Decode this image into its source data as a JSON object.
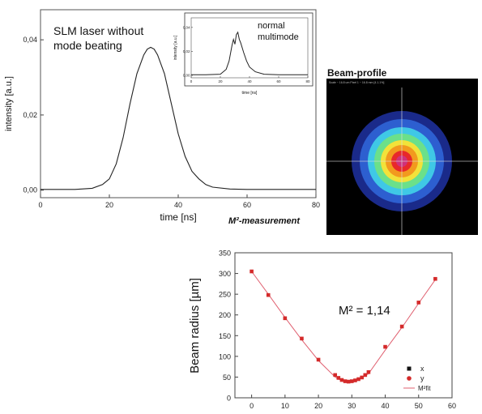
{
  "chart_data": [
    {
      "type": "line",
      "annotation": "SLM laser without mode beating",
      "xlabel": "time [ns]",
      "ylabel": "intensity [a.u.]",
      "xlim": [
        0,
        80
      ],
      "ylim": [
        -0.002,
        0.048
      ],
      "x_ticks": [
        "0",
        "20",
        "40",
        "60",
        "80"
      ],
      "y_ticks": [
        "0,00",
        "0,02",
        "0,04"
      ],
      "series": [
        {
          "x": [
            0,
            5,
            10,
            15,
            18,
            20,
            22,
            24,
            26,
            28,
            30,
            31,
            32,
            33,
            34,
            36,
            38,
            40,
            42,
            44,
            46,
            48,
            50,
            55,
            60,
            65,
            70,
            75,
            80
          ],
          "values": [
            0.0002,
            0.0002,
            0.0002,
            0.0005,
            0.0015,
            0.003,
            0.007,
            0.014,
            0.023,
            0.031,
            0.036,
            0.0375,
            0.038,
            0.0375,
            0.036,
            0.031,
            0.023,
            0.015,
            0.009,
            0.005,
            0.003,
            0.0015,
            0.0008,
            0.0003,
            0.0002,
            0.0002,
            0.0002,
            0.0002,
            0.0002
          ]
        }
      ]
    },
    {
      "type": "line",
      "annotation": "normal multimode",
      "xlabel": "time [ns]",
      "ylabel": "intensity [a.u.]",
      "xlim": [
        0,
        80
      ],
      "ylim": [
        -0.002,
        0.048
      ],
      "x_ticks": [
        "0",
        "20",
        "40",
        "60",
        "80"
      ],
      "y_ticks": [
        "0,00",
        "0,02",
        "0,04"
      ],
      "series": [
        {
          "x": [
            0,
            10,
            20,
            24,
            26,
            28,
            29,
            30,
            31,
            32,
            33,
            34,
            36,
            38,
            40,
            44,
            50,
            60,
            70,
            80
          ],
          "values": [
            0.0005,
            0.0005,
            0.001,
            0.005,
            0.012,
            0.025,
            0.03,
            0.026,
            0.034,
            0.036,
            0.03,
            0.027,
            0.019,
            0.012,
            0.007,
            0.003,
            0.001,
            0.0005,
            0.0005,
            0.0005
          ]
        }
      ]
    },
    {
      "type": "scatter",
      "title": "M²-measurement",
      "annotation": "M² = 1,14",
      "xlabel": "",
      "ylabel": "Beam radius [µm]",
      "xlim": [
        -5,
        60
      ],
      "ylim": [
        0,
        350
      ],
      "x_ticks": [
        "0",
        "10",
        "20",
        "30",
        "40",
        "50",
        "60"
      ],
      "y_ticks": [
        "0",
        "50",
        "100",
        "150",
        "200",
        "250",
        "300",
        "350"
      ],
      "legend": [
        "x",
        "y",
        "M²fit"
      ],
      "legend_position": "bottom-right",
      "series": [
        {
          "name": "y",
          "x": [
            0,
            5,
            10,
            15,
            20,
            25,
            26,
            27,
            28,
            29,
            30,
            31,
            32,
            33,
            34,
            35,
            40,
            45,
            50,
            55
          ],
          "values": [
            305,
            248,
            192,
            143,
            92,
            55,
            48,
            43,
            40,
            39,
            40,
            42,
            45,
            49,
            55,
            62,
            123,
            172,
            230,
            287
          ]
        },
        {
          "name": "M²fit",
          "x": [
            0,
            5,
            10,
            15,
            20,
            25,
            27,
            28,
            29,
            30,
            31,
            33,
            35,
            40,
            45,
            50,
            55
          ],
          "values": [
            305,
            250,
            194,
            140,
            90,
            50,
            41,
            39,
            38,
            39,
            41,
            48,
            58,
            115,
            170,
            228,
            285
          ]
        }
      ]
    }
  ],
  "beam_profile": {
    "title": "Beam-profile",
    "header_text": "Scale ~ 16.8 um Pixel 1 ~ 16.8 mm [4.1.1%]",
    "colors": [
      "#1a2a8a",
      "#2d5fd0",
      "#3fc8e6",
      "#6be08a",
      "#f2e23a",
      "#f29a1e",
      "#e8282a",
      "#d0307a"
    ]
  }
}
